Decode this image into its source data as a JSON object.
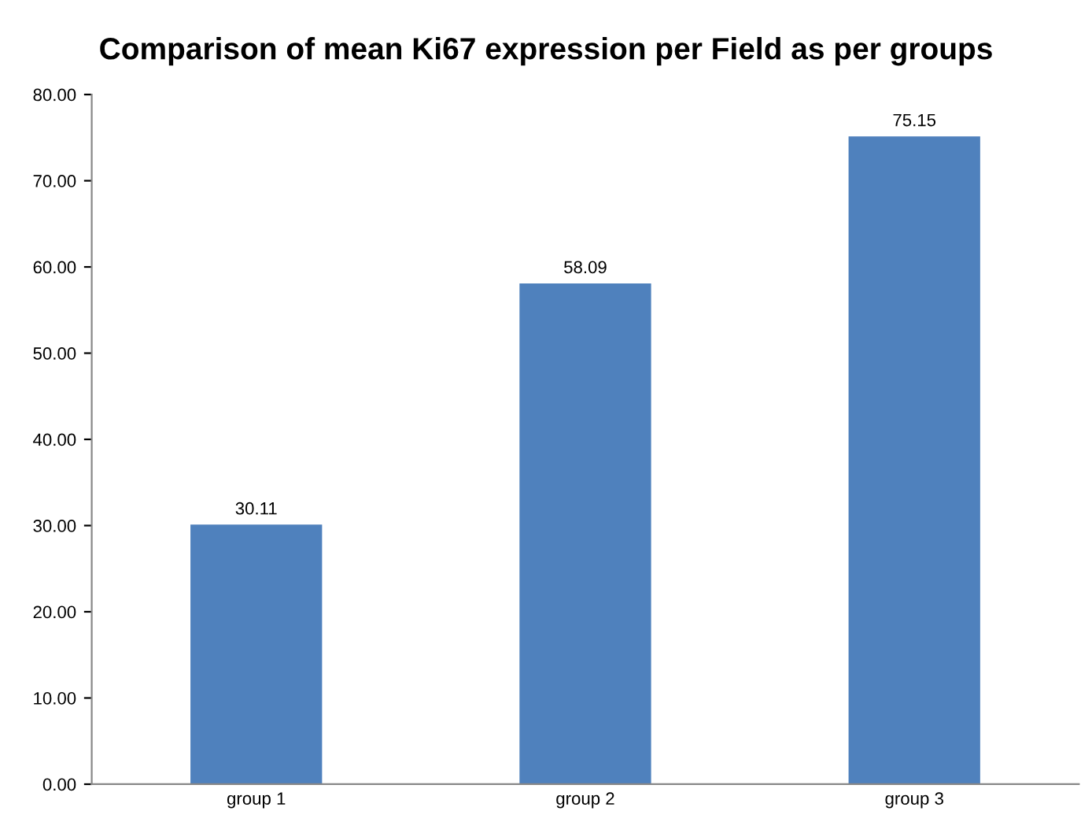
{
  "chart_data": {
    "type": "bar",
    "title": "Comparison of mean Ki67 expression per Field as per groups",
    "categories": [
      "group 1",
      "group 2",
      "group 3"
    ],
    "values": [
      30.11,
      58.09,
      75.15
    ],
    "color": "#4f81bd",
    "ylim": [
      0,
      80
    ],
    "yticks": [
      {
        "value": 0,
        "label": "0.00"
      },
      {
        "value": 10,
        "label": "10.00"
      },
      {
        "value": 20,
        "label": "20.00"
      },
      {
        "value": 30,
        "label": "30.00"
      },
      {
        "value": 40,
        "label": "40.00"
      },
      {
        "value": 50,
        "label": "50.00"
      },
      {
        "value": 60,
        "label": "60.00"
      },
      {
        "value": 70,
        "label": "70.00"
      },
      {
        "value": 80,
        "label": "80.00"
      }
    ],
    "data_labels": true,
    "grid": false,
    "legend": false
  }
}
